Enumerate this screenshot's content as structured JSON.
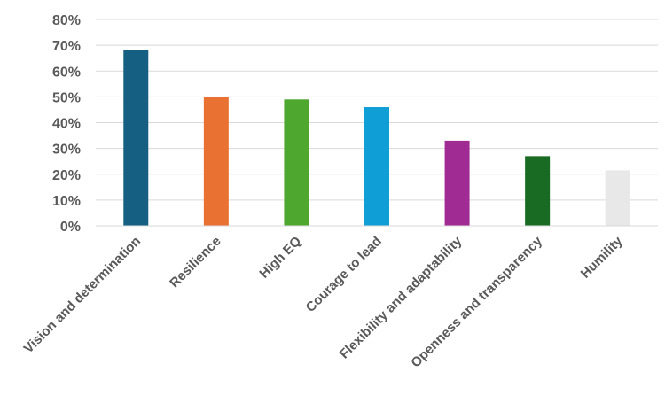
{
  "chart_data": {
    "type": "bar",
    "title": "",
    "xlabel": "",
    "ylabel": "",
    "ylim": [
      0,
      80
    ],
    "yticks": [
      0,
      10,
      20,
      30,
      40,
      50,
      60,
      70,
      80
    ],
    "ytick_labels": [
      "0%",
      "10%",
      "20%",
      "30%",
      "40%",
      "50%",
      "60%",
      "70%",
      "80%"
    ],
    "grid": true,
    "legend": "none",
    "categories": [
      "Vision and determination",
      "Resilience",
      "High EQ",
      "Courage to lead",
      "Flexibility and adaptability",
      "Openness and transparency",
      "Humility"
    ],
    "values": [
      68,
      50,
      49,
      46,
      33,
      27,
      21.5
    ],
    "colors": [
      "#156082",
      "#E97132",
      "#4EA72E",
      "#0F9ED5",
      "#A02B93",
      "#196B24",
      "#E8E8E8"
    ]
  }
}
